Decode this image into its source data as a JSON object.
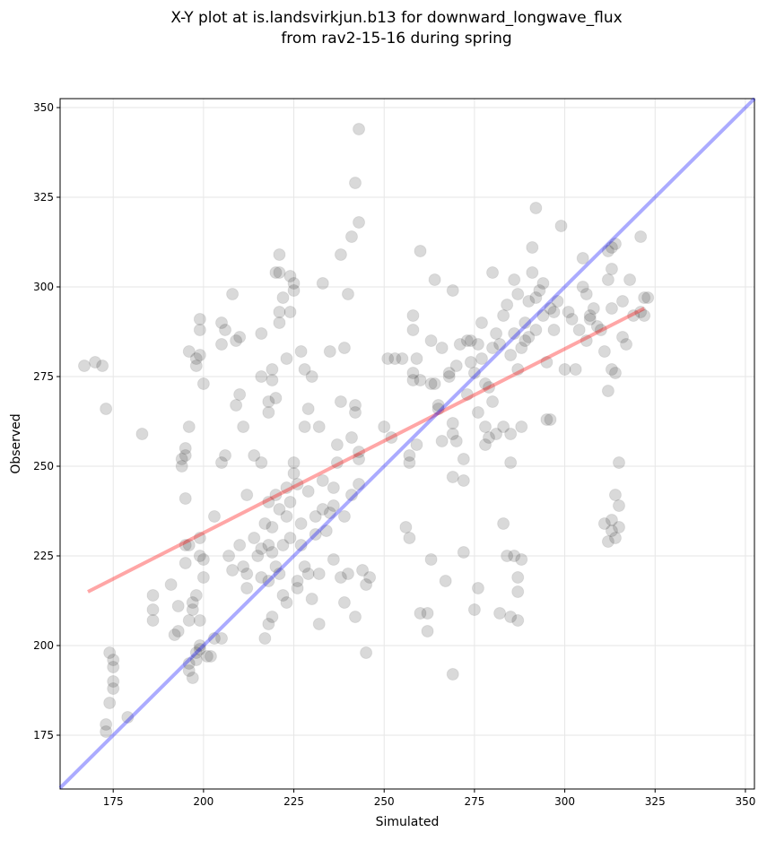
{
  "chart_data": {
    "type": "scatter",
    "title": [
      "X-Y plot at is.landsvirkjun.b13 for downward_longwave_flux",
      "from rav2-15-16 during spring"
    ],
    "xlabel": "Simulated",
    "ylabel": "Observed",
    "xlim": [
      160.3,
      352.5
    ],
    "ylim": [
      160,
      352.5
    ],
    "xticks": [
      175,
      200,
      225,
      250,
      275,
      300,
      325,
      350
    ],
    "yticks": [
      175,
      200,
      225,
      250,
      275,
      300,
      325,
      350
    ],
    "grid": true,
    "colors": {
      "points": "#000000",
      "fit_line": "#ff0000",
      "one_to_one_line": "#0000ff"
    },
    "fit_line": {
      "x": [
        168,
        322
      ],
      "y": [
        215,
        294
      ]
    },
    "one_to_one_line": {
      "x": [
        160.3,
        352.5
      ],
      "y": [
        160.3,
        352.5
      ]
    },
    "points": [
      [
        167,
        278
      ],
      [
        170,
        279
      ],
      [
        172,
        278
      ],
      [
        173,
        266
      ],
      [
        173,
        176
      ],
      [
        173,
        178
      ],
      [
        174,
        184
      ],
      [
        174,
        198
      ],
      [
        175,
        196
      ],
      [
        175,
        194
      ],
      [
        175,
        188
      ],
      [
        175,
        190
      ],
      [
        179,
        180
      ],
      [
        183,
        259
      ],
      [
        186,
        214
      ],
      [
        186,
        210
      ],
      [
        186,
        207
      ],
      [
        191,
        217
      ],
      [
        192,
        203
      ],
      [
        193,
        204
      ],
      [
        193,
        211
      ],
      [
        194,
        250
      ],
      [
        194,
        252
      ],
      [
        195,
        223
      ],
      [
        195,
        228
      ],
      [
        195,
        241
      ],
      [
        195,
        253
      ],
      [
        195,
        255
      ],
      [
        196,
        261
      ],
      [
        196,
        282
      ],
      [
        196,
        228
      ],
      [
        196,
        193
      ],
      [
        196,
        195
      ],
      [
        196,
        207
      ],
      [
        197,
        191
      ],
      [
        197,
        210
      ],
      [
        197,
        212
      ],
      [
        198,
        196
      ],
      [
        198,
        198
      ],
      [
        198,
        214
      ],
      [
        198,
        280
      ],
      [
        198,
        278
      ],
      [
        199,
        281
      ],
      [
        199,
        288
      ],
      [
        199,
        291
      ],
      [
        199,
        199
      ],
      [
        199,
        200
      ],
      [
        199,
        207
      ],
      [
        199,
        225
      ],
      [
        199,
        230
      ],
      [
        200,
        273
      ],
      [
        200,
        219
      ],
      [
        200,
        224
      ],
      [
        201,
        197
      ],
      [
        202,
        197
      ],
      [
        203,
        236
      ],
      [
        203,
        202
      ],
      [
        205,
        202
      ],
      [
        205,
        251
      ],
      [
        205,
        284
      ],
      [
        205,
        290
      ],
      [
        206,
        288
      ],
      [
        206,
        253
      ],
      [
        207,
        225
      ],
      [
        208,
        221
      ],
      [
        208,
        298
      ],
      [
        209,
        267
      ],
      [
        209,
        285
      ],
      [
        210,
        286
      ],
      [
        210,
        270
      ],
      [
        210,
        228
      ],
      [
        211,
        261
      ],
      [
        211,
        222
      ],
      [
        212,
        242
      ],
      [
        212,
        220
      ],
      [
        212,
        216
      ],
      [
        214,
        253
      ],
      [
        214,
        230
      ],
      [
        215,
        225
      ],
      [
        216,
        287
      ],
      [
        216,
        251
      ],
      [
        216,
        275
      ],
      [
        216,
        227
      ],
      [
        216,
        219
      ],
      [
        217,
        202
      ],
      [
        217,
        234
      ],
      [
        218,
        268
      ],
      [
        218,
        265
      ],
      [
        218,
        240
      ],
      [
        218,
        228
      ],
      [
        218,
        206
      ],
      [
        218,
        218
      ],
      [
        219,
        277
      ],
      [
        219,
        274
      ],
      [
        219,
        226
      ],
      [
        219,
        233
      ],
      [
        219,
        208
      ],
      [
        220,
        269
      ],
      [
        220,
        304
      ],
      [
        220,
        242
      ],
      [
        220,
        222
      ],
      [
        221,
        309
      ],
      [
        221,
        304
      ],
      [
        221,
        293
      ],
      [
        221,
        290
      ],
      [
        221,
        220
      ],
      [
        221,
        238
      ],
      [
        222,
        297
      ],
      [
        222,
        228
      ],
      [
        222,
        214
      ],
      [
        223,
        236
      ],
      [
        223,
        244
      ],
      [
        223,
        280
      ],
      [
        223,
        212
      ],
      [
        224,
        303
      ],
      [
        224,
        293
      ],
      [
        224,
        240
      ],
      [
        224,
        230
      ],
      [
        225,
        301
      ],
      [
        225,
        299
      ],
      [
        225,
        251
      ],
      [
        225,
        248
      ],
      [
        226,
        245
      ],
      [
        226,
        216
      ],
      [
        226,
        218
      ],
      [
        227,
        228
      ],
      [
        227,
        234
      ],
      [
        227,
        282
      ],
      [
        228,
        277
      ],
      [
        228,
        261
      ],
      [
        228,
        222
      ],
      [
        229,
        266
      ],
      [
        229,
        243
      ],
      [
        229,
        220
      ],
      [
        230,
        213
      ],
      [
        230,
        275
      ],
      [
        231,
        231
      ],
      [
        231,
        236
      ],
      [
        232,
        261
      ],
      [
        232,
        206
      ],
      [
        232,
        220
      ],
      [
        233,
        301
      ],
      [
        233,
        246
      ],
      [
        233,
        238
      ],
      [
        234,
        232
      ],
      [
        235,
        237
      ],
      [
        235,
        282
      ],
      [
        236,
        224
      ],
      [
        236,
        244
      ],
      [
        236,
        239
      ],
      [
        237,
        251
      ],
      [
        237,
        256
      ],
      [
        238,
        309
      ],
      [
        238,
        268
      ],
      [
        238,
        219
      ],
      [
        239,
        283
      ],
      [
        239,
        212
      ],
      [
        239,
        236
      ],
      [
        240,
        298
      ],
      [
        240,
        220
      ],
      [
        241,
        314
      ],
      [
        241,
        258
      ],
      [
        241,
        242
      ],
      [
        242,
        329
      ],
      [
        242,
        267
      ],
      [
        242,
        265
      ],
      [
        242,
        208
      ],
      [
        243,
        344
      ],
      [
        243,
        318
      ],
      [
        243,
        254
      ],
      [
        243,
        252
      ],
      [
        243,
        245
      ],
      [
        244,
        221
      ],
      [
        245,
        198
      ],
      [
        245,
        217
      ],
      [
        246,
        219
      ],
      [
        250,
        261
      ],
      [
        251,
        280
      ],
      [
        252,
        258
      ],
      [
        253,
        280
      ],
      [
        255,
        280
      ],
      [
        256,
        233
      ],
      [
        257,
        230
      ],
      [
        257,
        251
      ],
      [
        257,
        253
      ],
      [
        258,
        288
      ],
      [
        258,
        292
      ],
      [
        258,
        274
      ],
      [
        258,
        276
      ],
      [
        259,
        256
      ],
      [
        259,
        280
      ],
      [
        260,
        209
      ],
      [
        260,
        310
      ],
      [
        260,
        274
      ],
      [
        262,
        209
      ],
      [
        262,
        204
      ],
      [
        263,
        224
      ],
      [
        263,
        273
      ],
      [
        263,
        285
      ],
      [
        264,
        302
      ],
      [
        264,
        273
      ],
      [
        265,
        266
      ],
      [
        265,
        267
      ],
      [
        266,
        257
      ],
      [
        266,
        283
      ],
      [
        267,
        218
      ],
      [
        268,
        275
      ],
      [
        268,
        276
      ],
      [
        269,
        299
      ],
      [
        269,
        262
      ],
      [
        269,
        259
      ],
      [
        269,
        247
      ],
      [
        269,
        192
      ],
      [
        270,
        278
      ],
      [
        270,
        257
      ],
      [
        271,
        284
      ],
      [
        272,
        252
      ],
      [
        272,
        246
      ],
      [
        272,
        226
      ],
      [
        273,
        285
      ],
      [
        273,
        270
      ],
      [
        274,
        285
      ],
      [
        274,
        279
      ],
      [
        275,
        210
      ],
      [
        275,
        276
      ],
      [
        276,
        284
      ],
      [
        276,
        216
      ],
      [
        276,
        265
      ],
      [
        277,
        290
      ],
      [
        277,
        280
      ],
      [
        278,
        261
      ],
      [
        278,
        256
      ],
      [
        278,
        273
      ],
      [
        279,
        272
      ],
      [
        279,
        258
      ],
      [
        280,
        304
      ],
      [
        280,
        283
      ],
      [
        280,
        268
      ],
      [
        281,
        259
      ],
      [
        281,
        287
      ],
      [
        282,
        284
      ],
      [
        282,
        209
      ],
      [
        283,
        234
      ],
      [
        283,
        261
      ],
      [
        283,
        292
      ],
      [
        284,
        225
      ],
      [
        284,
        295
      ],
      [
        285,
        208
      ],
      [
        285,
        281
      ],
      [
        285,
        251
      ],
      [
        285,
        259
      ],
      [
        286,
        287
      ],
      [
        286,
        302
      ],
      [
        286,
        225
      ],
      [
        287,
        219
      ],
      [
        287,
        215
      ],
      [
        287,
        207
      ],
      [
        287,
        277
      ],
      [
        287,
        298
      ],
      [
        288,
        224
      ],
      [
        288,
        261
      ],
      [
        288,
        283
      ],
      [
        289,
        290
      ],
      [
        289,
        285
      ],
      [
        290,
        296
      ],
      [
        290,
        286
      ],
      [
        291,
        311
      ],
      [
        291,
        304
      ],
      [
        292,
        288
      ],
      [
        292,
        297
      ],
      [
        292,
        322
      ],
      [
        293,
        299
      ],
      [
        294,
        301
      ],
      [
        294,
        292
      ],
      [
        295,
        263
      ],
      [
        295,
        279
      ],
      [
        296,
        294
      ],
      [
        296,
        263
      ],
      [
        297,
        293
      ],
      [
        297,
        288
      ],
      [
        298,
        296
      ],
      [
        299,
        317
      ],
      [
        300,
        277
      ],
      [
        301,
        293
      ],
      [
        302,
        291
      ],
      [
        303,
        277
      ],
      [
        304,
        288
      ],
      [
        305,
        300
      ],
      [
        305,
        308
      ],
      [
        306,
        285
      ],
      [
        306,
        298
      ],
      [
        307,
        291
      ],
      [
        307,
        292
      ],
      [
        308,
        294
      ],
      [
        309,
        289
      ],
      [
        310,
        288
      ],
      [
        311,
        234
      ],
      [
        311,
        282
      ],
      [
        312,
        271
      ],
      [
        312,
        229
      ],
      [
        312,
        310
      ],
      [
        312,
        302
      ],
      [
        313,
        311
      ],
      [
        313,
        305
      ],
      [
        313,
        235
      ],
      [
        313,
        232
      ],
      [
        313,
        277
      ],
      [
        313,
        294
      ],
      [
        314,
        312
      ],
      [
        314,
        276
      ],
      [
        314,
        242
      ],
      [
        314,
        230
      ],
      [
        315,
        251
      ],
      [
        315,
        239
      ],
      [
        315,
        233
      ],
      [
        316,
        286
      ],
      [
        316,
        296
      ],
      [
        317,
        284
      ],
      [
        318,
        302
      ],
      [
        319,
        292
      ],
      [
        321,
        293
      ],
      [
        321,
        314
      ],
      [
        322,
        297
      ],
      [
        322,
        292
      ],
      [
        323,
        297
      ]
    ]
  }
}
